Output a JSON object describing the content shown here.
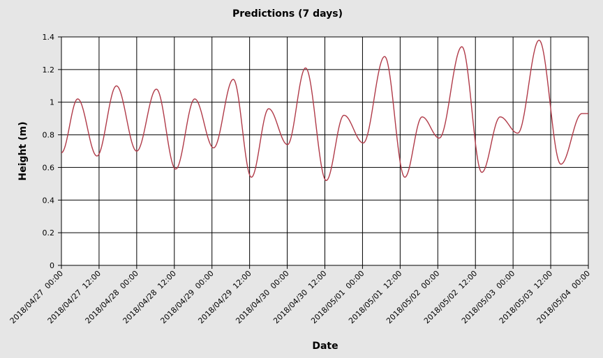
{
  "chart_data": {
    "type": "line",
    "title": "Predictions (7 days)",
    "xlabel": "Date",
    "ylabel": "Height (m)",
    "ylim": [
      0,
      1.4
    ],
    "y_ticks": [
      0,
      0.2,
      0.4,
      0.6,
      0.8,
      1,
      1.2,
      1.4
    ],
    "y_tick_labels": [
      "0",
      "0.2",
      "0.4",
      "0.6",
      "0.8",
      "1",
      "1.2",
      "1.4"
    ],
    "xlim": [
      "2018/04/27 00:00",
      "2018/05/04 00:00"
    ],
    "x_tick_labels": [
      "2018/04/27  00:00",
      "2018/04/27  12:00",
      "2018/04/28  00:00",
      "2018/04/28  12:00",
      "2018/04/29  00:00",
      "2018/04/29  12:00",
      "2018/04/30  00:00",
      "2018/04/30  12:00",
      "2018/05/01  00:00",
      "2018/05/01  12:00",
      "2018/05/02  00:00",
      "2018/05/02  12:00",
      "2018/05/03  00:00",
      "2018/05/03  12:00",
      "2018/05/04  00:00"
    ],
    "grid": true,
    "line_color": "#b03a48",
    "series": [
      {
        "points": [
          [
            "2018/04/27 00:00",
            0.69
          ],
          [
            "2018/04/27 05:12",
            1.02
          ],
          [
            "2018/04/27 11:20",
            0.67
          ],
          [
            "2018/04/27 17:33",
            1.1
          ],
          [
            "2018/04/28 00:00",
            0.7
          ],
          [
            "2018/04/28 06:17",
            1.08
          ],
          [
            "2018/04/28 12:26",
            0.59
          ],
          [
            "2018/04/28 18:31",
            1.02
          ],
          [
            "2018/04/29 00:31",
            0.72
          ],
          [
            "2018/04/29 06:48",
            1.14
          ],
          [
            "2018/04/29 12:34",
            0.54
          ],
          [
            "2018/04/29 18:05",
            0.96
          ],
          [
            "2018/04/30 00:05",
            0.74
          ],
          [
            "2018/04/30 05:51",
            1.21
          ],
          [
            "2018/04/30 12:26",
            0.52
          ],
          [
            "2018/04/30 18:05",
            0.92
          ],
          [
            "2018/05/01 00:14",
            0.75
          ],
          [
            "2018/05/01 07:03",
            1.28
          ],
          [
            "2018/05/01 13:29",
            0.54
          ],
          [
            "2018/05/01 19:00",
            0.91
          ],
          [
            "2018/05/02 00:28",
            0.78
          ],
          [
            "2018/05/02 07:41",
            1.34
          ],
          [
            "2018/05/02 14:02",
            0.57
          ],
          [
            "2018/05/02 19:54",
            0.91
          ],
          [
            "2018/05/03 01:30",
            0.81
          ],
          [
            "2018/05/03 08:18",
            1.38
          ],
          [
            "2018/05/03 15:14",
            0.62
          ],
          [
            "2018/05/03 21:56",
            0.93
          ],
          [
            "2018/05/04 00:00",
            0.93
          ]
        ]
      }
    ]
  }
}
